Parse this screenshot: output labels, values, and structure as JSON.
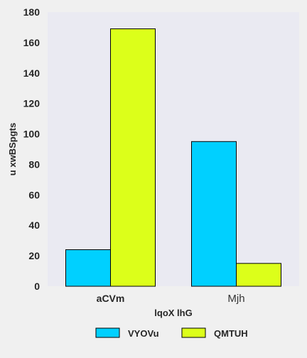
{
  "chart_data": {
    "type": "bar",
    "title": "",
    "xlabel": "lqoX lhG",
    "ylabel": "u xwBSpgts",
    "categories": [
      "aCVm",
      "Mjh"
    ],
    "series": [
      {
        "name": "VYOVu",
        "values": [
          24,
          95
        ],
        "color": "#00d0ff"
      },
      {
        "name": "QMTUH",
        "values": [
          169,
          15
        ],
        "color": "#dcff1a"
      }
    ],
    "ylim": [
      0,
      180
    ],
    "yticks": [
      0,
      20,
      40,
      60,
      80,
      100,
      120,
      140,
      160,
      180
    ],
    "grid": false,
    "legend_position": "bottom-center",
    "plot_background": "#eaeaf2",
    "bar_edge_color": "#000000"
  }
}
